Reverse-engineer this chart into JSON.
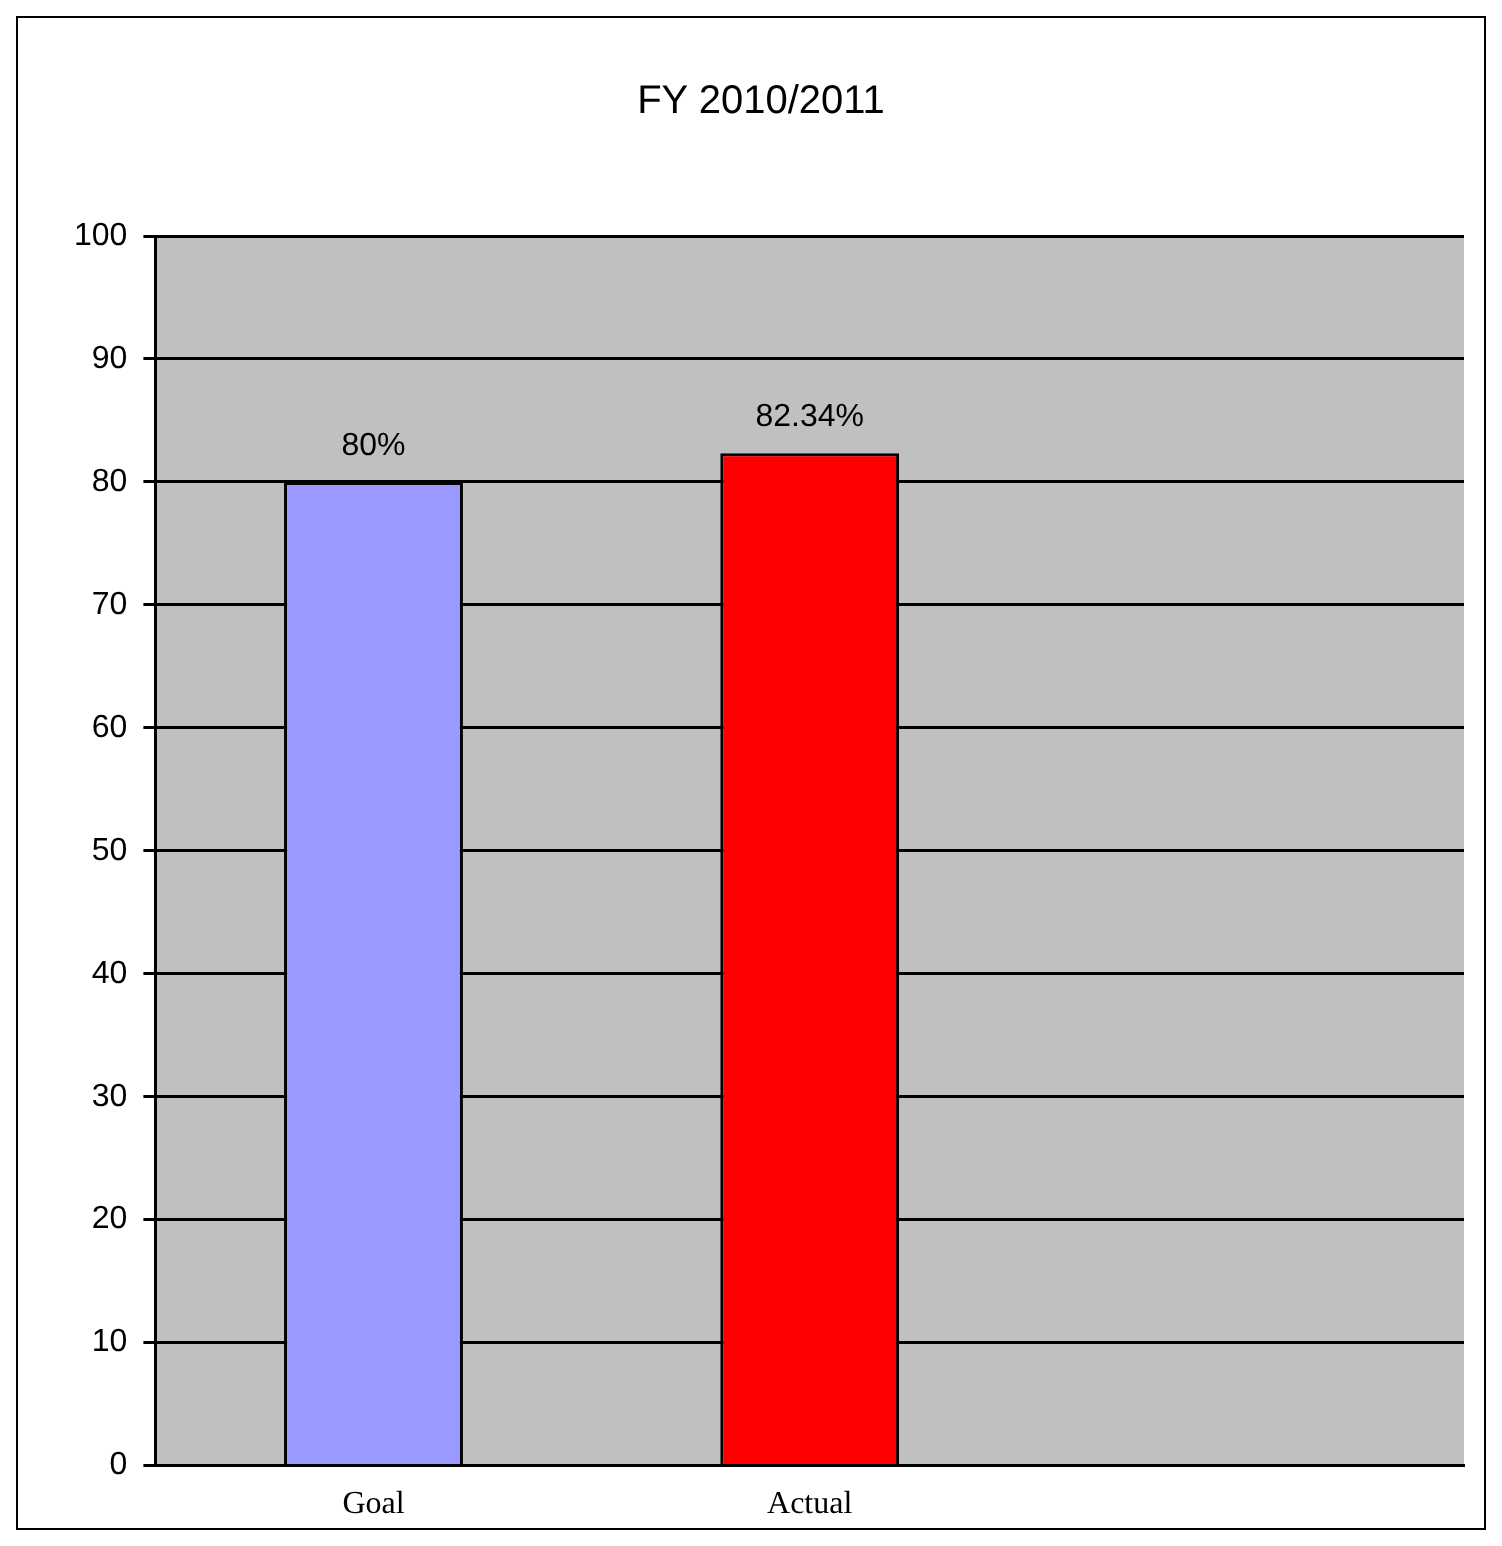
{
  "chart_data": {
    "type": "bar",
    "title": "FY 2010/2011",
    "categories": [
      "Goal",
      "Actual",
      null
    ],
    "values": [
      80,
      82.34,
      null
    ],
    "colors": [
      "#9999ff",
      "#ff0000",
      "#ff0000"
    ],
    "value_labels": [
      "80%",
      "82.34%",
      null
    ],
    "ylim": [
      0,
      100
    ],
    "yticks": [
      0,
      10,
      20,
      30,
      40,
      50,
      60,
      70,
      80,
      90,
      100
    ],
    "grid": "y",
    "legend": false
  }
}
